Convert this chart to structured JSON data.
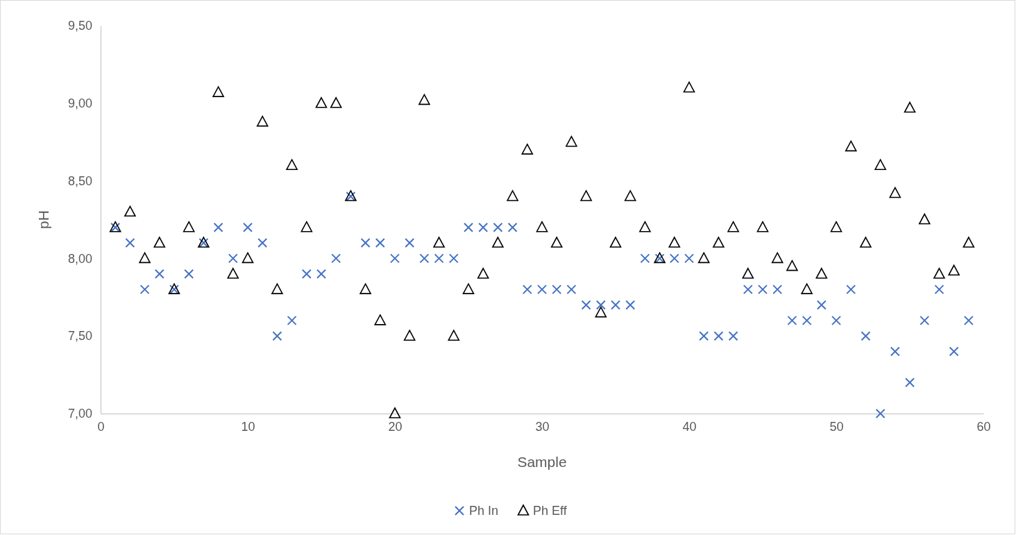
{
  "chart_data": {
    "type": "scatter",
    "xlabel": "Sample",
    "ylabel": "pH",
    "x": [
      1,
      2,
      3,
      4,
      5,
      6,
      7,
      8,
      9,
      10,
      11,
      12,
      13,
      14,
      15,
      16,
      17,
      18,
      19,
      20,
      21,
      22,
      23,
      24,
      25,
      26,
      27,
      28,
      29,
      30,
      31,
      32,
      33,
      34,
      35,
      36,
      37,
      38,
      39,
      40,
      41,
      42,
      43,
      44,
      45,
      46,
      47,
      48,
      49,
      50,
      51,
      52,
      53,
      54,
      55,
      56,
      57,
      58,
      59
    ],
    "series": [
      {
        "name": "Ph In",
        "color": "#4472c4",
        "marker": "cross",
        "values": [
          8.2,
          8.1,
          7.8,
          7.9,
          7.8,
          7.9,
          8.1,
          8.2,
          8.0,
          8.2,
          8.1,
          7.5,
          7.6,
          7.9,
          7.9,
          8.0,
          8.4,
          8.1,
          8.1,
          8.0,
          8.1,
          8.0,
          8.0,
          8.0,
          8.2,
          8.2,
          8.2,
          8.2,
          7.8,
          7.8,
          7.8,
          7.8,
          7.7,
          7.7,
          7.7,
          7.7,
          8.0,
          8.0,
          8.0,
          8.0,
          7.5,
          7.5,
          7.5,
          7.8,
          7.8,
          7.8,
          7.6,
          7.6,
          7.7,
          7.6,
          7.8,
          7.5,
          7.0,
          7.4,
          7.2,
          7.6,
          7.8,
          7.4,
          7.6
        ]
      },
      {
        "name": "Ph Eff",
        "color": "#000000",
        "marker": "triangle",
        "values": [
          8.2,
          8.3,
          8.0,
          8.1,
          7.8,
          8.2,
          8.1,
          9.07,
          7.9,
          8.0,
          8.88,
          7.8,
          8.6,
          8.2,
          9.0,
          9.0,
          8.4,
          7.8,
          7.6,
          7.0,
          7.5,
          9.02,
          8.1,
          7.5,
          7.8,
          7.9,
          8.1,
          8.4,
          8.7,
          8.2,
          8.1,
          8.75,
          8.4,
          7.65,
          8.1,
          8.4,
          8.2,
          8.0,
          8.1,
          9.1,
          8.0,
          8.1,
          8.2,
          7.9,
          8.2,
          8.0,
          7.95,
          7.8,
          7.9,
          8.2,
          8.72,
          8.1,
          8.6,
          8.42,
          8.97,
          8.25,
          7.9,
          7.92,
          8.1
        ]
      }
    ],
    "xlim": [
      0,
      60
    ],
    "xticks": [
      0,
      10,
      20,
      30,
      40,
      50,
      60
    ],
    "ylim": [
      7,
      9.5
    ],
    "yticks": [
      {
        "value": 7,
        "label": "7,00"
      },
      {
        "value": 7.5,
        "label": "7,50"
      },
      {
        "value": 8,
        "label": "8,00"
      },
      {
        "value": 8.5,
        "label": "8,50"
      },
      {
        "value": 9,
        "label": "9,00"
      },
      {
        "value": 9.5,
        "label": "9,50"
      }
    ],
    "grid": false,
    "legend": "bottom"
  }
}
